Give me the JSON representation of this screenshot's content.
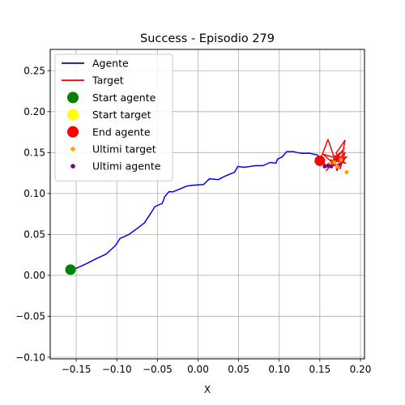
{
  "chart_data": {
    "type": "line",
    "title": "Success - Episodio 279",
    "xlabel": "X",
    "ylabel": "",
    "xlim": [
      -0.182,
      0.205
    ],
    "ylim": [
      -0.102,
      0.276
    ],
    "grid": true,
    "legend_position": "top-left",
    "x_ticks": [
      -0.15,
      -0.1,
      -0.05,
      0.0,
      0.05,
      0.1,
      0.15,
      0.2
    ],
    "x_tick_labels": [
      "−0.15",
      "−0.10",
      "−0.05",
      "0.00",
      "0.05",
      "0.10",
      "0.15",
      "0.20"
    ],
    "y_ticks": [
      -0.1,
      -0.05,
      0.0,
      0.05,
      0.1,
      0.15,
      0.2,
      0.25
    ],
    "y_tick_labels": [
      "−0.10",
      "−0.05",
      "0.00",
      "0.05",
      "0.10",
      "0.15",
      "0.20",
      "0.25"
    ],
    "series": [
      {
        "name": "Agente",
        "kind": "line",
        "color": "#0000ff",
        "points": [
          [
            -0.157,
            0.007
          ],
          [
            -0.149,
            0.009
          ],
          [
            -0.138,
            0.014
          ],
          [
            -0.126,
            0.02
          ],
          [
            -0.113,
            0.026
          ],
          [
            -0.102,
            0.036
          ],
          [
            -0.096,
            0.045
          ],
          [
            -0.085,
            0.05
          ],
          [
            -0.074,
            0.058
          ],
          [
            -0.066,
            0.064
          ],
          [
            -0.06,
            0.073
          ],
          [
            -0.053,
            0.084
          ],
          [
            -0.044,
            0.088
          ],
          [
            -0.041,
            0.096
          ],
          [
            -0.036,
            0.102
          ],
          [
            -0.031,
            0.102
          ],
          [
            -0.026,
            0.104
          ],
          [
            -0.014,
            0.109
          ],
          [
            -0.007,
            0.11
          ],
          [
            0.007,
            0.111
          ],
          [
            0.014,
            0.118
          ],
          [
            0.025,
            0.117
          ],
          [
            0.033,
            0.121
          ],
          [
            0.045,
            0.126
          ],
          [
            0.049,
            0.133
          ],
          [
            0.057,
            0.132
          ],
          [
            0.071,
            0.134
          ],
          [
            0.08,
            0.134
          ],
          [
            0.089,
            0.138
          ],
          [
            0.096,
            0.137
          ],
          [
            0.098,
            0.142
          ],
          [
            0.104,
            0.145
          ],
          [
            0.109,
            0.151
          ],
          [
            0.118,
            0.151
          ],
          [
            0.127,
            0.149
          ],
          [
            0.138,
            0.149
          ],
          [
            0.147,
            0.147
          ],
          [
            0.153,
            0.14
          ],
          [
            0.158,
            0.133
          ],
          [
            0.165,
            0.134
          ],
          [
            0.171,
            0.135
          ],
          [
            0.176,
            0.137
          ],
          [
            0.18,
            0.14
          ]
        ]
      },
      {
        "name": "Target",
        "kind": "line",
        "color": "#ff0000",
        "points": [
          [
            0.15,
            0.14
          ],
          [
            0.16,
            0.166
          ],
          [
            0.167,
            0.146
          ],
          [
            0.174,
            0.146
          ],
          [
            0.166,
            0.134
          ],
          [
            0.181,
            0.15
          ],
          [
            0.175,
            0.13
          ],
          [
            0.181,
            0.165
          ],
          [
            0.17,
            0.149
          ],
          [
            0.177,
            0.14
          ],
          [
            0.171,
            0.128
          ],
          [
            0.167,
            0.143
          ],
          [
            0.178,
            0.152
          ],
          [
            0.158,
            0.128
          ],
          [
            0.18,
            0.155
          ],
          [
            0.164,
            0.136
          ],
          [
            0.183,
            0.145
          ],
          [
            0.172,
            0.132
          ],
          [
            0.154,
            0.148
          ],
          [
            0.171,
            0.143
          ],
          [
            0.182,
            0.137
          ],
          [
            0.163,
            0.141
          ]
        ]
      },
      {
        "name": "Start agente",
        "kind": "marker",
        "color": "#008000",
        "size": "large",
        "points": [
          [
            -0.157,
            0.007
          ]
        ]
      },
      {
        "name": "Start target",
        "kind": "marker",
        "color": "#ffff00",
        "size": "large",
        "points": [
          [
            0.15,
            0.14
          ]
        ]
      },
      {
        "name": "End agente",
        "kind": "marker",
        "color": "#ff0000",
        "size": "large",
        "points": [
          [
            0.15,
            0.14
          ]
        ]
      },
      {
        "name": "Ultimi target",
        "kind": "marker",
        "color": "#ffa500",
        "size": "small",
        "points": [
          [
            0.183,
            0.126
          ],
          [
            0.171,
            0.133
          ],
          [
            0.168,
            0.138
          ],
          [
            0.176,
            0.141
          ],
          [
            0.162,
            0.136
          ]
        ]
      },
      {
        "name": "Ultimi agente",
        "kind": "marker",
        "color": "#800080",
        "size": "small",
        "points": [
          [
            0.156,
            0.133
          ],
          [
            0.16,
            0.134
          ],
          [
            0.164,
            0.133
          ]
        ]
      }
    ],
    "legend": [
      {
        "label": "Agente",
        "kind": "line",
        "color": "#0000ff",
        "size": "line"
      },
      {
        "label": "Target",
        "kind": "line",
        "color": "#ff0000",
        "size": "line"
      },
      {
        "label": "Start agente",
        "kind": "marker",
        "color": "#008000",
        "size": "large"
      },
      {
        "label": "Start target",
        "kind": "marker",
        "color": "#ffff00",
        "size": "large"
      },
      {
        "label": "End agente",
        "kind": "marker",
        "color": "#ff0000",
        "size": "large"
      },
      {
        "label": "Ultimi target",
        "kind": "marker",
        "color": "#ffa500",
        "size": "small"
      },
      {
        "label": "Ultimi agente",
        "kind": "marker",
        "color": "#800080",
        "size": "small"
      }
    ]
  }
}
